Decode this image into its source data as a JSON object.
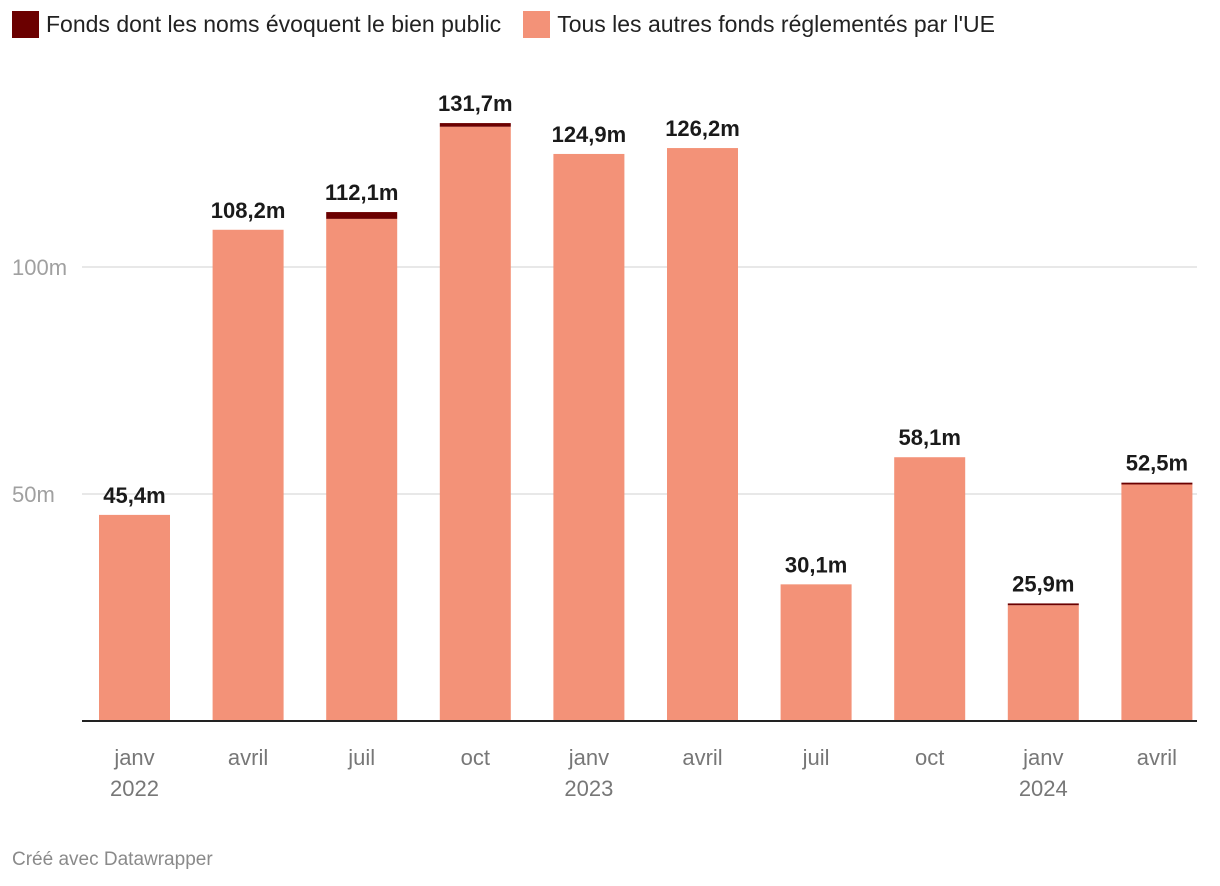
{
  "colors": {
    "public_good": "#6b0000",
    "other": "#f39278",
    "grid": "#e0e0e0",
    "axis": "#222222"
  },
  "legend": [
    {
      "key": "public_good",
      "label": "Fonds dont les noms évoquent le bien public"
    },
    {
      "key": "other",
      "label": "Tous les autres fonds réglementés par l'UE"
    }
  ],
  "footer": "Créé avec Datawrapper",
  "chart_data": {
    "type": "bar",
    "stacked": true,
    "categories": [
      "janv 2022",
      "avril",
      "juil",
      "oct",
      "janv 2023",
      "avril",
      "juil",
      "oct",
      "janv 2024",
      "avril"
    ],
    "category_lines": [
      [
        "janv",
        "2022"
      ],
      [
        "avril"
      ],
      [
        "juil"
      ],
      [
        "oct"
      ],
      [
        "janv",
        "2023"
      ],
      [
        "avril"
      ],
      [
        "juil"
      ],
      [
        "oct"
      ],
      [
        "janv",
        "2024"
      ],
      [
        "avril"
      ]
    ],
    "series": [
      {
        "name": "Tous les autres fonds réglementés par l'UE",
        "key": "other",
        "values": [
          45.4,
          108.2,
          110.6,
          130.9,
          124.9,
          126.2,
          30.1,
          58.1,
          25.5,
          52.1
        ]
      },
      {
        "name": "Fonds dont les noms évoquent le bien public",
        "key": "public_good",
        "values": [
          0,
          0,
          1.5,
          0.8,
          0,
          0,
          0,
          0,
          0.4,
          0.4
        ]
      }
    ],
    "totals": [
      45.4,
      108.2,
      112.1,
      131.7,
      124.9,
      126.2,
      30.1,
      58.1,
      25.9,
      52.5
    ],
    "total_labels": [
      "45,4m",
      "108,2m",
      "112,1m",
      "131,7m",
      "124,9m",
      "126,2m",
      "30,1m",
      "58,1m",
      "25,9m",
      "52,5m"
    ],
    "y_ticks": [
      50,
      100
    ],
    "y_tick_labels": [
      "50m",
      "100m"
    ],
    "ylim": [
      0,
      140
    ],
    "title": "",
    "xlabel": "",
    "ylabel": "",
    "grid": true
  }
}
